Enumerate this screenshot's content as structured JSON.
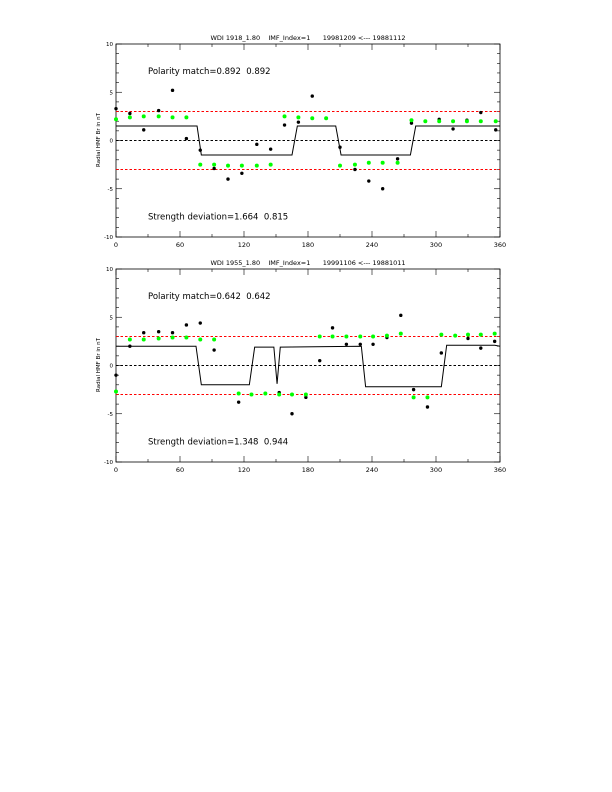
{
  "chart_data": [
    {
      "type": "scatter",
      "title": "WDI 1918_1.80    IMF_Index=1      19981209 <--- 19881112",
      "xlabel": "",
      "ylabel": "Radial HMF Br in nT",
      "xlim": [
        0,
        360
      ],
      "ylim": [
        -10,
        10
      ],
      "xticks": [
        0,
        60,
        120,
        180,
        240,
        300,
        360
      ],
      "yticks": [
        -10,
        -5,
        0,
        5,
        10
      ],
      "annotations": [
        {
          "text": "Polarity match=0.892  0.892",
          "x": 30,
          "y": 7.2
        },
        {
          "text": "Strength deviation=1.664  0.815",
          "x": 30,
          "y": -7.9
        }
      ],
      "reference_lines": [
        {
          "y": 3,
          "color": "#ff0000",
          "style": "dashed"
        },
        {
          "y": -3,
          "color": "#ff0000",
          "style": "dashed"
        },
        {
          "y": 0,
          "color": "#000000",
          "style": "dashed"
        }
      ],
      "series": [
        {
          "name": "observed",
          "color": "#000000",
          "x": [
            0,
            13,
            26,
            40,
            53,
            66,
            79,
            92,
            105,
            118,
            132,
            145,
            158,
            171,
            184,
            197,
            210,
            224,
            237,
            250,
            264,
            277,
            303,
            316,
            329,
            342,
            356
          ],
          "y": [
            3.3,
            2.8,
            1.1,
            3.1,
            5.2,
            0.2,
            -1.0,
            -2.9,
            -4.0,
            -3.4,
            -0.4,
            -0.9,
            1.6,
            1.9,
            4.6,
            2.3,
            -0.7,
            -3.0,
            -4.2,
            -5.0,
            -1.9,
            1.8,
            2.2,
            1.2,
            2.1,
            2.9,
            1.1
          ]
        },
        {
          "name": "model",
          "color": "#00ff00",
          "x": [
            0,
            13,
            26,
            40,
            53,
            66,
            79,
            92,
            105,
            118,
            132,
            145,
            158,
            171,
            184,
            197,
            210,
            224,
            237,
            250,
            264,
            277,
            290,
            303,
            316,
            329,
            342,
            356
          ],
          "y": [
            2.2,
            2.4,
            2.5,
            2.5,
            2.4,
            2.4,
            -2.5,
            -2.5,
            -2.6,
            -2.6,
            -2.6,
            -2.5,
            2.5,
            2.4,
            2.3,
            2.3,
            -2.6,
            -2.5,
            -2.3,
            -2.3,
            -2.3,
            2.1,
            2.0,
            2.0,
            2.0,
            2.0,
            2.0,
            2.0
          ]
        },
        {
          "name": "sector",
          "color": "#000000",
          "type": "line",
          "x": [
            0,
            76,
            80,
            165,
            170,
            206,
            211,
            276,
            281,
            360
          ],
          "y": [
            1.5,
            1.5,
            -1.5,
            -1.5,
            1.5,
            1.5,
            -1.5,
            -1.5,
            1.5,
            1.5
          ]
        }
      ]
    },
    {
      "type": "scatter",
      "title": "WDI 1955_1.80    IMF_Index=1      19991106 <--- 19881011",
      "xlabel": "",
      "ylabel": "Radial HMF Br in nT",
      "xlim": [
        0,
        360
      ],
      "ylim": [
        -10,
        10
      ],
      "xticks": [
        0,
        60,
        120,
        180,
        240,
        300,
        360
      ],
      "yticks": [
        -10,
        -5,
        0,
        5,
        10
      ],
      "annotations": [
        {
          "text": "Polarity match=0.642  0.642",
          "x": 30,
          "y": 7.2
        },
        {
          "text": "Strength deviation=1.348  0.944",
          "x": 30,
          "y": -7.9
        }
      ],
      "reference_lines": [
        {
          "y": 3,
          "color": "#ff0000",
          "style": "dashed"
        },
        {
          "y": -3,
          "color": "#ff0000",
          "style": "dashed"
        },
        {
          "y": 0,
          "color": "#000000",
          "style": "dashed"
        }
      ],
      "series": [
        {
          "name": "observed",
          "color": "#000000",
          "x": [
            0,
            13,
            26,
            40,
            53,
            66,
            79,
            92,
            115,
            140,
            153,
            165,
            178,
            191,
            203,
            216,
            229,
            241,
            254,
            267,
            279,
            292,
            305,
            330,
            342,
            355
          ],
          "y": [
            -1.0,
            2.0,
            3.4,
            3.5,
            3.4,
            4.2,
            4.4,
            1.6,
            -3.8,
            -2.9,
            -2.8,
            -5.0,
            -3.3,
            0.5,
            3.9,
            2.2,
            2.2,
            2.2,
            2.9,
            5.2,
            -2.5,
            -4.3,
            1.3,
            2.8,
            1.8,
            2.5
          ]
        },
        {
          "name": "model",
          "color": "#00ff00",
          "x": [
            0,
            13,
            26,
            40,
            53,
            66,
            79,
            92,
            115,
            127,
            140,
            153,
            165,
            178,
            191,
            203,
            216,
            229,
            241,
            254,
            267,
            279,
            292,
            305,
            318,
            330,
            342,
            355
          ],
          "y": [
            -2.7,
            2.7,
            2.7,
            2.8,
            2.9,
            2.9,
            2.7,
            2.7,
            -2.9,
            -3.0,
            -2.9,
            -3.0,
            -3.0,
            -3.0,
            3.0,
            3.0,
            3.0,
            3.0,
            3.0,
            3.1,
            3.3,
            -3.3,
            -3.3,
            3.2,
            3.1,
            3.2,
            3.2,
            3.3
          ]
        },
        {
          "name": "sector",
          "color": "#000000",
          "type": "line",
          "x": [
            0,
            75,
            80,
            125,
            130,
            148,
            151,
            154,
            230,
            234,
            305,
            310,
            355,
            360
          ],
          "y": [
            2.0,
            2.0,
            -2.0,
            -2.0,
            1.9,
            1.9,
            -1.9,
            1.9,
            2.0,
            -2.2,
            -2.2,
            2.1,
            2.1,
            2.0
          ]
        }
      ]
    }
  ]
}
